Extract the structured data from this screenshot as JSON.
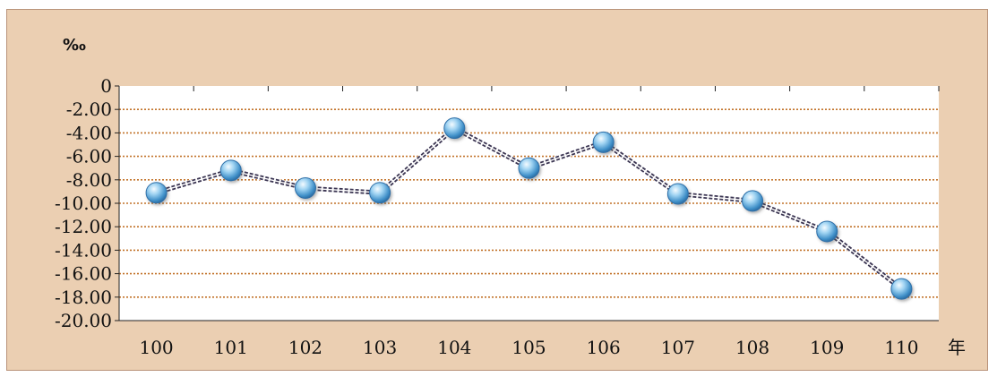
{
  "chart_data": {
    "type": "line",
    "y_unit_label": "‰",
    "x_unit_label": "年",
    "categories": [
      "100",
      "101",
      "102",
      "103",
      "104",
      "105",
      "106",
      "107",
      "108",
      "109",
      "110"
    ],
    "series": [
      {
        "values": [
          -9.1,
          -7.2,
          -8.7,
          -9.1,
          -3.6,
          -7.0,
          -4.8,
          -9.2,
          -9.8,
          -12.4,
          -17.3
        ]
      }
    ],
    "ylim": [
      -20,
      0
    ],
    "y_ticks": [
      0,
      -2,
      -4,
      -6,
      -8,
      -10,
      -12,
      -14,
      -16,
      -18,
      -20
    ],
    "y_tick_labels": [
      "0",
      "-2.00",
      "-4.00",
      "-6.00",
      "-8.00",
      "-10.00",
      "-12.00",
      "-14.00",
      "-16.00",
      "-18.00",
      "-20.00"
    ],
    "grid": true,
    "colors": {
      "background": "#ebcfb2",
      "plot_area": "#ffffff",
      "grid": "#c2732a",
      "line": "#3b3552",
      "marker": "#5aa9da"
    }
  }
}
